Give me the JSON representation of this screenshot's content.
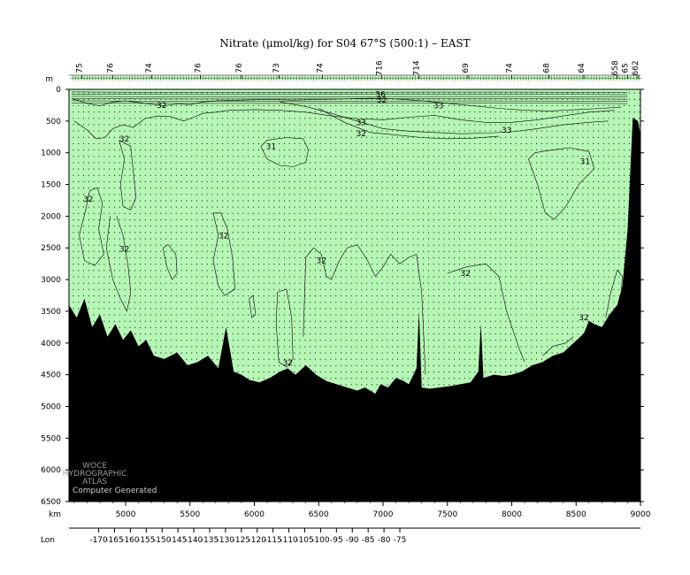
{
  "chart_data": {
    "type": "contour",
    "title": "Nitrate (μmol/kg) for S04 67°S (500:1) – EAST",
    "y_axis_unit": "m",
    "x_axis_unit": "km",
    "lon_axis_label": "Lon",
    "ylim": [
      6500,
      0
    ],
    "xlim": [
      4560,
      9000
    ],
    "y_ticks": [
      0,
      500,
      1000,
      1500,
      2000,
      2500,
      3000,
      3500,
      4000,
      4500,
      5000,
      5500,
      6000,
      6500
    ],
    "x_ticks": [
      5000,
      5500,
      6000,
      6500,
      7000,
      7500,
      8000,
      8500,
      9000
    ],
    "lon_ticks": [
      -170,
      -165,
      -160,
      -155,
      -150,
      -145,
      -140,
      -135,
      -130,
      -125,
      -120,
      -115,
      -110,
      -105,
      -100,
      -95,
      -90,
      -85,
      -80,
      -75
    ],
    "station_labels": [
      {
        "km": 4660,
        "label": "75"
      },
      {
        "km": 4900,
        "label": "76"
      },
      {
        "km": 5200,
        "label": "74"
      },
      {
        "km": 5580,
        "label": "76"
      },
      {
        "km": 5900,
        "label": "76"
      },
      {
        "km": 6190,
        "label": "73"
      },
      {
        "km": 6530,
        "label": "74"
      },
      {
        "km": 6990,
        "label": "716"
      },
      {
        "km": 7280,
        "label": "714"
      },
      {
        "km": 7660,
        "label": "69"
      },
      {
        "km": 8000,
        "label": "74"
      },
      {
        "km": 8290,
        "label": "68"
      },
      {
        "km": 8560,
        "label": "64"
      },
      {
        "km": 8820,
        "label": "658"
      },
      {
        "km": 8900,
        "label": "65"
      },
      {
        "km": 8980,
        "label": "662"
      }
    ],
    "contour_labels": [
      {
        "km": 5280,
        "depth": 250,
        "value": "32"
      },
      {
        "km": 4990,
        "depth": 780,
        "value": "32"
      },
      {
        "km": 4710,
        "depth": 1730,
        "value": "32"
      },
      {
        "km": 4990,
        "depth": 2520,
        "value": "32"
      },
      {
        "km": 6130,
        "depth": 900,
        "value": "31"
      },
      {
        "km": 5760,
        "depth": 2310,
        "value": "32"
      },
      {
        "km": 6520,
        "depth": 2700,
        "value": "32"
      },
      {
        "km": 6980,
        "depth": 80,
        "value": "36"
      },
      {
        "km": 6990,
        "depth": 170,
        "value": "32"
      },
      {
        "km": 7430,
        "depth": 260,
        "value": "33"
      },
      {
        "km": 6830,
        "depth": 520,
        "value": "33"
      },
      {
        "km": 6830,
        "depth": 700,
        "value": "32"
      },
      {
        "km": 7960,
        "depth": 640,
        "value": "33"
      },
      {
        "km": 8570,
        "depth": 1140,
        "value": "31"
      },
      {
        "km": 7640,
        "depth": 2900,
        "value": "32"
      },
      {
        "km": 6260,
        "depth": 4310,
        "value": "32"
      },
      {
        "km": 8560,
        "depth": 3600,
        "value": "32"
      }
    ],
    "bottom_profile_depths_m": [
      [
        4560,
        3400
      ],
      [
        4620,
        3600
      ],
      [
        4680,
        3300
      ],
      [
        4740,
        3750
      ],
      [
        4800,
        3550
      ],
      [
        4860,
        3900
      ],
      [
        4920,
        3700
      ],
      [
        4980,
        3950
      ],
      [
        5040,
        3800
      ],
      [
        5100,
        4050
      ],
      [
        5160,
        3950
      ],
      [
        5220,
        4200
      ],
      [
        5300,
        4250
      ],
      [
        5400,
        4150
      ],
      [
        5480,
        4350
      ],
      [
        5560,
        4300
      ],
      [
        5640,
        4200
      ],
      [
        5720,
        4400
      ],
      [
        5780,
        3750
      ],
      [
        5840,
        4450
      ],
      [
        5900,
        4500
      ],
      [
        5960,
        4580
      ],
      [
        6040,
        4620
      ],
      [
        6120,
        4550
      ],
      [
        6200,
        4450
      ],
      [
        6260,
        4400
      ],
      [
        6320,
        4500
      ],
      [
        6400,
        4350
      ],
      [
        6480,
        4500
      ],
      [
        6560,
        4600
      ],
      [
        6640,
        4650
      ],
      [
        6720,
        4700
      ],
      [
        6800,
        4750
      ],
      [
        6860,
        4700
      ],
      [
        6940,
        4800
      ],
      [
        6980,
        4650
      ],
      [
        7040,
        4700
      ],
      [
        7100,
        4550
      ],
      [
        7160,
        4600
      ],
      [
        7200,
        4650
      ],
      [
        7260,
        4400
      ],
      [
        7280,
        3500
      ],
      [
        7300,
        4700
      ],
      [
        7360,
        4720
      ],
      [
        7440,
        4700
      ],
      [
        7520,
        4680
      ],
      [
        7600,
        4650
      ],
      [
        7680,
        4620
      ],
      [
        7740,
        4450
      ],
      [
        7760,
        3700
      ],
      [
        7780,
        4550
      ],
      [
        7860,
        4500
      ],
      [
        7940,
        4520
      ],
      [
        8000,
        4500
      ],
      [
        8080,
        4450
      ],
      [
        8160,
        4350
      ],
      [
        8240,
        4300
      ],
      [
        8320,
        4200
      ],
      [
        8400,
        4150
      ],
      [
        8480,
        4000
      ],
      [
        8560,
        3850
      ],
      [
        8600,
        3650
      ],
      [
        8640,
        3700
      ],
      [
        8700,
        3750
      ],
      [
        8760,
        3550
      ],
      [
        8820,
        3400
      ],
      [
        8860,
        3100
      ],
      [
        8900,
        2200
      ],
      [
        8940,
        450
      ],
      [
        8980,
        500
      ],
      [
        9000,
        700
      ]
    ],
    "sampling_grid": {
      "depth_step_m": 100,
      "station_step_km": 40
    },
    "colors": {
      "water": "#b6f7b6",
      "seabed": "#000000",
      "contour": "#000000"
    }
  },
  "watermark": {
    "lines": [
      "WOCE",
      "HYDROGRAPHIC",
      "ATLAS"
    ],
    "caption": "Computer Generated"
  }
}
